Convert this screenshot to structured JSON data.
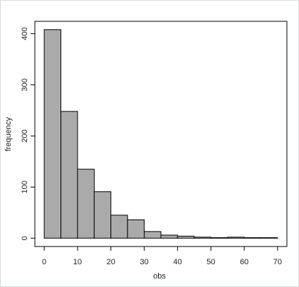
{
  "chart_data": {
    "type": "histogram",
    "xlabel": "obs",
    "ylabel": "frequency",
    "bins": [
      0,
      5,
      10,
      15,
      20,
      25,
      30,
      35,
      40,
      45,
      50,
      55,
      60,
      65,
      70
    ],
    "values": [
      408,
      248,
      135,
      91,
      45,
      36,
      13,
      6,
      4,
      2,
      1,
      2,
      1,
      1
    ],
    "color": "#aaaaaa",
    "xlim": [
      -2.8,
      72.8
    ],
    "xticks": [
      0,
      10,
      20,
      30,
      40,
      50,
      60,
      70
    ],
    "ylim": [
      -16.3,
      424.3
    ],
    "yticks": [
      0,
      100,
      200,
      300,
      400
    ]
  }
}
